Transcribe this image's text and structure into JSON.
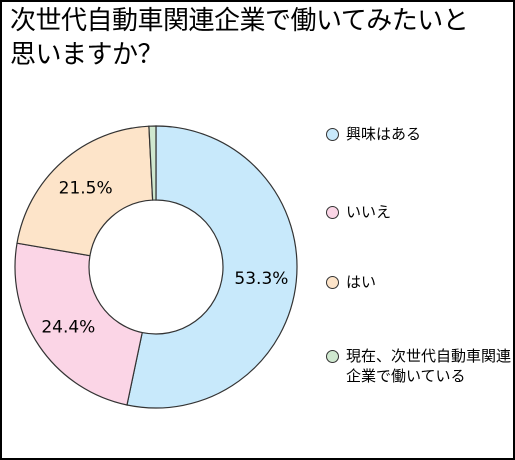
{
  "title": {
    "line1": "次世代自動車関連企業で働いてみたいと",
    "line2": "思いますか？"
  },
  "chart_data": {
    "type": "pie",
    "donut": true,
    "slices": [
      {
        "label": "興味はある",
        "value": 53.3,
        "value_label": "53.3%",
        "color": "#c8e9fb"
      },
      {
        "label": "いいえ",
        "value": 24.4,
        "value_label": "24.4%",
        "color": "#fbd5e6"
      },
      {
        "label": "はい",
        "value": 21.5,
        "value_label": "21.5%",
        "color": "#fde4c9"
      },
      {
        "label": "現在、次世代自動車関連企業で働いている",
        "value": 0.8,
        "value_label": "",
        "color": "#cfe8cf"
      }
    ],
    "legend": {
      "placement": "right",
      "items": [
        {
          "text": "興味はある",
          "color": "#c8e9fb"
        },
        {
          "text": "いいえ",
          "color": "#fbd5e6"
        },
        {
          "text": "はい",
          "color": "#fde4c9"
        },
        {
          "text": "現在、次世代自動車関連企業で働いている",
          "color": "#cfe8cf"
        }
      ]
    }
  }
}
